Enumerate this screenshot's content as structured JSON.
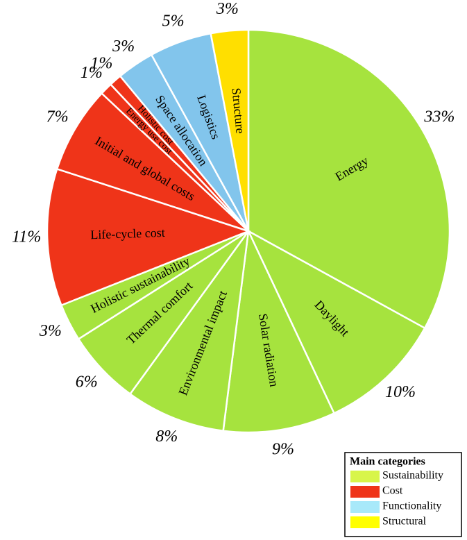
{
  "chart_data": {
    "type": "pie",
    "categories": [
      "Energy",
      "Daylight",
      "Solar radiation",
      "Environmental impact",
      "Thermal comfort",
      "Holistic sustainability",
      "Life-cycle cost",
      "Initial and global costs",
      "Energy use cost",
      "Holistic cost",
      "Space allocation",
      "Logistics",
      "Structure"
    ],
    "values": [
      33,
      10,
      9,
      8,
      6,
      3,
      11,
      7,
      1,
      1,
      3,
      5,
      3
    ],
    "value_labels": [
      "33%",
      "10%",
      "9%",
      "8%",
      "6%",
      "3%",
      "11%",
      "7%",
      "1%",
      "1%",
      "3%",
      "5%",
      "3%"
    ],
    "colors": [
      "#a6e33e",
      "#a6e33e",
      "#a6e33e",
      "#a6e33e",
      "#a6e33e",
      "#a6e33e",
      "#ef3419",
      "#ef3419",
      "#ef3419",
      "#ef3419",
      "#82c5ec",
      "#82c5ec",
      "#ffdf00"
    ],
    "legend": {
      "title": "Main categories",
      "position": "bottom-right",
      "entries": [
        {
          "name": "Sustainability",
          "color": "#d8f54a"
        },
        {
          "name": "Cost",
          "color": "#ef3419"
        },
        {
          "name": "Functionality",
          "color": "#a8e9fa"
        },
        {
          "name": "Structural",
          "color": "#ffff00"
        }
      ]
    }
  }
}
